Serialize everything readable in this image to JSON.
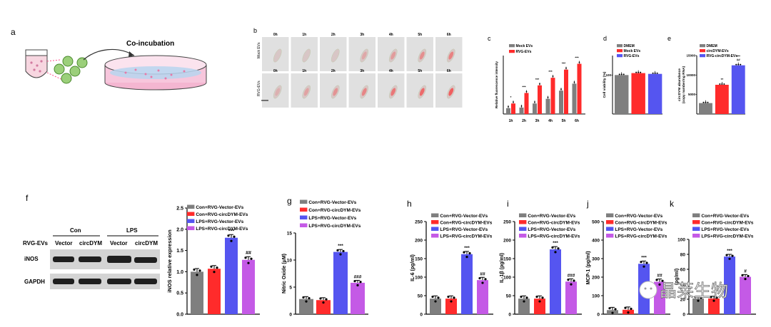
{
  "panels": {
    "a": {
      "letter": "a",
      "title": "Co-incubation"
    },
    "b": {
      "letter": "b",
      "times": [
        "0h",
        "1h",
        "2h",
        "3h",
        "4h",
        "5h",
        "6h"
      ],
      "rows": [
        "Mock EVs",
        "RVG-EVs"
      ]
    },
    "c": {
      "letter": "c"
    },
    "d": {
      "letter": "d"
    },
    "e": {
      "letter": "e"
    },
    "f": {
      "letter": "f",
      "rvg": "RVG-EVs",
      "con": "Con",
      "lps": "LPS",
      "lanes": [
        "Vector",
        "circDYM",
        "Vector",
        "circDYM"
      ],
      "bands": [
        "iNOS",
        "GAPDH"
      ]
    },
    "g": {
      "letter": "g"
    },
    "h": {
      "letter": "h"
    },
    "i": {
      "letter": "i"
    },
    "j": {
      "letter": "j"
    },
    "k": {
      "letter": "k"
    }
  },
  "watermark": "晶莱生物",
  "legend4": [
    "Con+RVG-Vector-EVs",
    "Con+RVG-circDYM-EVs",
    "LPS+RVG-Vector-EVs",
    "LPS+RVG-circDYM-EVs"
  ],
  "colors": {
    "gray": "#7f7f7f",
    "red": "#ff2b2b",
    "blue": "#5555f0",
    "purple": "#c45ae6"
  },
  "chart_data": [
    {
      "id": "c",
      "type": "bar",
      "ylabel": "Relative fluorescence intensity",
      "categories": [
        "1h",
        "2h",
        "3h",
        "4h",
        "5h",
        "6h"
      ],
      "ylim": [
        0,
        10
      ],
      "series": [
        {
          "name": "Mock EVs",
          "color": "#7f7f7f",
          "values": [
            1.0,
            1.1,
            1.8,
            2.6,
            4.0,
            5.2
          ]
        },
        {
          "name": "RVG-EVs",
          "color": "#ff2b2b",
          "values": [
            1.8,
            3.6,
            4.9,
            6.2,
            7.6,
            8.6
          ]
        }
      ],
      "sig": [
        "*",
        "***",
        "***",
        "***",
        "***",
        "***"
      ]
    },
    {
      "id": "d",
      "type": "bar",
      "ylabel": "Cell viability (%)",
      "categories": [
        "DMEM",
        "Mock EVs",
        "RVG-EVs"
      ],
      "ylim": [
        0,
        150
      ],
      "values": [
        100,
        105,
        103
      ],
      "colors": [
        "#7f7f7f",
        "#ff2b2b",
        "#5555f0"
      ],
      "tick_labels": [
        "100"
      ]
    },
    {
      "id": "e",
      "type": "bar",
      "ylabel": "circDYM abundance\n(copy number/ng RNA)",
      "categories": [
        "DMEM",
        "circDYM-EVs",
        "RVG-circDYM-EVs"
      ],
      "ylim": [
        0,
        15000
      ],
      "values": [
        2800,
        7500,
        12500
      ],
      "colors": [
        "#7f7f7f",
        "#ff2b2b",
        "#5555f0"
      ],
      "tick_labels": [
        "5000",
        "10000",
        "15000"
      ],
      "sig": [
        "",
        "**",
        "***\n##"
      ]
    },
    {
      "id": "f",
      "type": "bar",
      "ylabel": "iNOS relative expression",
      "categories": [
        "Con+RVG-Vector-EVs",
        "Con+RVG-circDYM-EVs",
        "LPS+RVG-Vector-EVs",
        "LPS+RVG-circDYM-EVs"
      ],
      "ylim": [
        0,
        2.5
      ],
      "ticks": [
        "0.0",
        "0.5",
        "1.0",
        "1.5",
        "2.0",
        "2.5"
      ],
      "values": [
        1.0,
        1.07,
        1.8,
        1.28
      ],
      "sig": [
        "",
        "",
        "***",
        "##"
      ]
    },
    {
      "id": "g",
      "type": "bar",
      "ylabel": "Nitric Oxide (μM)",
      "categories": [
        "Con+RVG-Vector-EVs",
        "Con+RVG-circDYM-EVs",
        "LPS+RVG-Vector-EVs",
        "LPS+RVG-circDYM-EVs"
      ],
      "ylim": [
        0,
        15
      ],
      "ticks": [
        "0",
        "5",
        "10",
        "15"
      ],
      "values": [
        2.8,
        2.6,
        11.5,
        5.8
      ],
      "sig": [
        "",
        "",
        "***",
        "###"
      ]
    },
    {
      "id": "h",
      "type": "bar",
      "ylabel": "IL-6 (pg/ml)",
      "categories": [
        "Con+RVG-Vector-EVs",
        "Con+RVG-circDYM-EVs",
        "LPS+RVG-Vector-EVs",
        "LPS+RVG-circDYM-EVs"
      ],
      "ylim": [
        0,
        250
      ],
      "ticks": [
        "0",
        "50",
        "100",
        "150",
        "200",
        "250"
      ],
      "values": [
        42,
        42,
        162,
        92
      ],
      "sig": [
        "",
        "",
        "***",
        "##"
      ]
    },
    {
      "id": "i",
      "type": "bar",
      "ylabel": "IL-1β (pg/ml)",
      "categories": [
        "Con+RVG-Vector-EVs",
        "Con+RVG-circDYM-EVs",
        "LPS+RVG-Vector-EVs",
        "LPS+RVG-circDYM-EVs"
      ],
      "ylim": [
        0,
        250
      ],
      "ticks": [
        "0",
        "50",
        "100",
        "150",
        "200",
        "250"
      ],
      "values": [
        42,
        42,
        175,
        88
      ],
      "sig": [
        "",
        "",
        "***",
        "###"
      ]
    },
    {
      "id": "j",
      "type": "bar",
      "ylabel": "MCP-1 (pg/ml)",
      "categories": [
        "Con+RVG-Vector-EVs",
        "Con+RVG-circDYM-EVs",
        "LPS+RVG-Vector-EVs",
        "LPS+RVG-circDYM-EVs"
      ],
      "ylim": [
        0,
        500
      ],
      "ticks": [
        "0",
        "100",
        "200",
        "300",
        "400",
        "500"
      ],
      "values": [
        22,
        24,
        272,
        175
      ],
      "sig": [
        "",
        "",
        "***",
        "##"
      ]
    },
    {
      "id": "k",
      "type": "bar",
      "ylabel": "(pg/ml)",
      "categories": [
        "Con+RVG-Vector-EVs",
        "Con+RVG-circDYM-EVs",
        "LPS+RVG-Vector-EVs",
        "LPS+RVG-circDYM-EVs"
      ],
      "ylim": [
        0,
        100
      ],
      "ticks": [
        "0",
        "20",
        "40",
        "60",
        "80",
        "100"
      ],
      "values": [
        21,
        21,
        77,
        50
      ],
      "sig": [
        "",
        "",
        "***",
        "#"
      ]
    }
  ]
}
